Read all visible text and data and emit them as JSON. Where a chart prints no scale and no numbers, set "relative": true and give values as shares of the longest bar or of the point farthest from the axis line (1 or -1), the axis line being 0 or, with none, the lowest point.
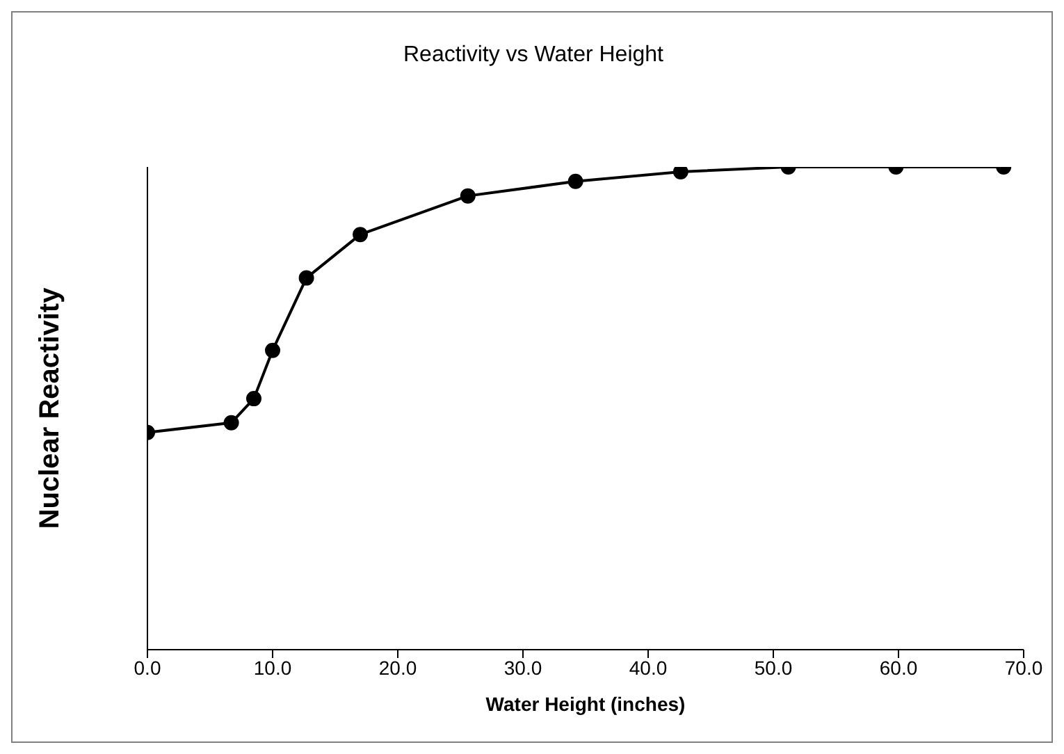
{
  "chart_data": {
    "type": "line",
    "title": "Reactivity vs Water Height",
    "xlabel": "Water Height (inches)",
    "ylabel": "Nuclear Reactivity",
    "relative": true,
    "x": [
      0,
      6.7,
      8.5,
      10.0,
      12.7,
      17.0,
      25.6,
      34.2,
      42.6,
      51.2,
      59.8,
      68.4
    ],
    "series": [
      {
        "color": "#000000",
        "values": [
          0.45,
          0.47,
          0.52,
          0.62,
          0.77,
          0.86,
          0.94,
          0.97,
          0.99,
          1.0,
          1.0,
          1.0
        ]
      }
    ],
    "xlim": [
      0,
      70
    ],
    "xticks": [
      {
        "value": 0,
        "label": "0.0"
      },
      {
        "value": 10,
        "label": "10.0"
      },
      {
        "value": 20,
        "label": "20.0"
      },
      {
        "value": 30,
        "label": "30.0"
      },
      {
        "value": 40,
        "label": "40.0"
      },
      {
        "value": 50,
        "label": "50.0"
      },
      {
        "value": 60,
        "label": "60.0"
      },
      {
        "value": 70,
        "label": "70.0"
      }
    ],
    "tick_labels": "x",
    "grid": false,
    "marker": "circle",
    "line_style": "solid"
  }
}
